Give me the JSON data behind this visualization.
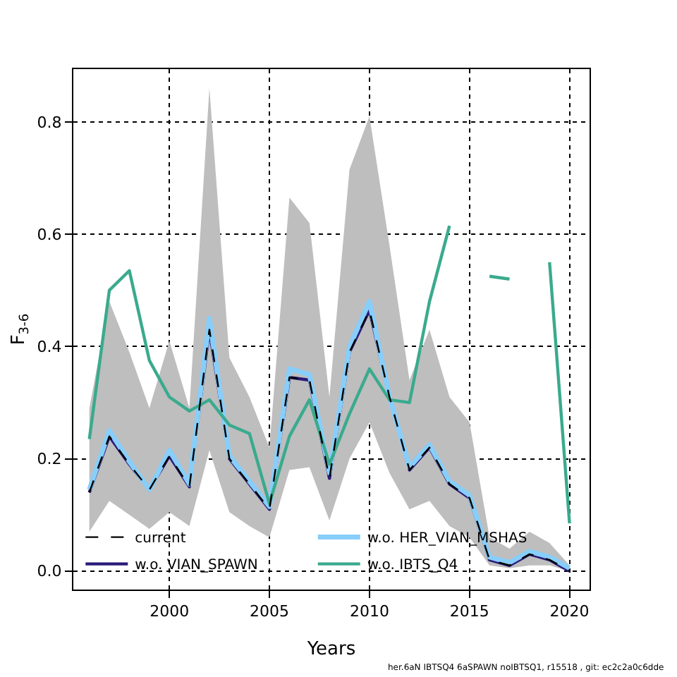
{
  "chart_data": {
    "type": "line",
    "xlabel": "Years",
    "ylabel": "F$_{3-6}$",
    "x": [
      1996,
      1997,
      1998,
      1999,
      2000,
      2001,
      2002,
      2003,
      2004,
      2005,
      2006,
      2007,
      2008,
      2009,
      2010,
      2011,
      2012,
      2013,
      2014,
      2015,
      2016,
      2017,
      2018,
      2019,
      2020
    ],
    "series": [
      {
        "name": "current",
        "color": "#000000",
        "line_style": "dashed",
        "values": [
          0.14,
          0.24,
          0.19,
          0.145,
          0.205,
          0.15,
          0.43,
          0.2,
          0.155,
          0.11,
          0.345,
          0.34,
          0.165,
          0.39,
          0.465,
          0.31,
          0.18,
          0.22,
          0.155,
          0.13,
          0.02,
          0.01,
          0.03,
          0.02,
          0.0
        ],
        "lower": [
          0.07,
          0.125,
          0.1,
          0.075,
          0.105,
          0.08,
          0.215,
          0.105,
          0.08,
          0.06,
          0.18,
          0.185,
          0.09,
          0.2,
          0.265,
          0.175,
          0.11,
          0.125,
          0.08,
          0.06,
          0.01,
          0.005,
          0.01,
          0.01,
          0.0
        ],
        "upper": [
          0.29,
          0.48,
          0.39,
          0.29,
          0.41,
          0.29,
          0.86,
          0.38,
          0.31,
          0.22,
          0.665,
          0.62,
          0.31,
          0.715,
          0.81,
          0.58,
          0.34,
          0.43,
          0.31,
          0.265,
          0.06,
          0.04,
          0.07,
          0.05,
          0.01
        ]
      },
      {
        "name": "w.o. VIAN_SPAWN",
        "color": "#2a1a7a",
        "line_style": "solid",
        "values": [
          0.14,
          0.24,
          0.19,
          0.145,
          0.205,
          0.15,
          0.43,
          0.2,
          0.155,
          0.11,
          0.345,
          0.34,
          0.165,
          0.39,
          0.465,
          0.31,
          0.18,
          0.22,
          0.155,
          0.13,
          0.02,
          0.01,
          0.03,
          0.02,
          0.0
        ]
      },
      {
        "name": "w.o. HER_VIAN_MSHAS",
        "color": "#87cefa",
        "line_style": "solid",
        "values": [
          0.145,
          0.25,
          0.195,
          0.145,
          0.215,
          0.155,
          0.45,
          0.205,
          0.16,
          0.115,
          0.36,
          0.35,
          0.175,
          0.4,
          0.48,
          0.31,
          0.185,
          0.225,
          0.16,
          0.135,
          0.025,
          0.015,
          0.035,
          0.025,
          0.005
        ]
      },
      {
        "name": "w.o. IBTS_Q4",
        "color": "#3aaa8e",
        "line_style": "solid",
        "values": [
          0.235,
          0.5,
          0.535,
          0.375,
          0.31,
          0.285,
          0.305,
          0.26,
          0.245,
          0.12,
          0.24,
          0.305,
          0.19,
          0.28,
          0.36,
          0.305,
          0.3,
          0.48,
          0.615,
          null,
          0.525,
          0.52,
          null,
          0.55,
          0.085
        ]
      }
    ],
    "xlim": [
      1995.2,
      2021.0
    ],
    "ylim": [
      -0.033,
      0.894
    ],
    "xticks": [
      2000,
      2005,
      2010,
      2015,
      2020
    ],
    "yticks": [
      {
        "value": 0,
        "label": "0.0"
      },
      {
        "value": 0.2,
        "label": "0.2"
      },
      {
        "value": 0.4,
        "label": "0.4"
      },
      {
        "value": 0.6,
        "label": "0.6"
      },
      {
        "value": 0.8,
        "label": "0.8"
      }
    ],
    "grid": true,
    "legend": "bottom left",
    "annotations": [
      "her.6aN IBTSQ4 6aSPAWN noIBTSQ1, r15518 , git: ec2c2a0c6dde"
    ]
  }
}
